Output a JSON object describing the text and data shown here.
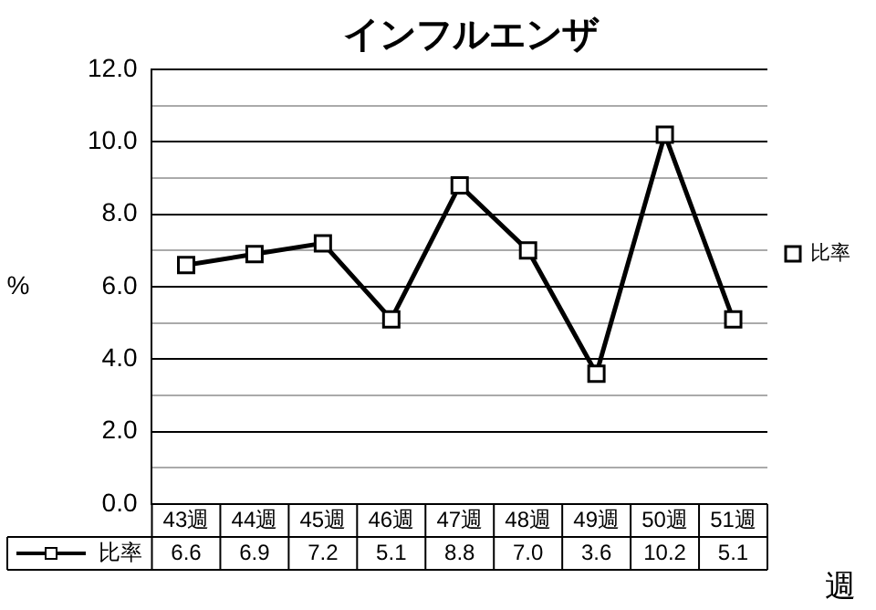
{
  "chart_data": {
    "type": "line",
    "title": "インフルエンザ",
    "ylabel": "%",
    "xlabel": "週",
    "categories": [
      "43週",
      "44週",
      "45週",
      "46週",
      "47週",
      "48週",
      "49週",
      "50週",
      "51週"
    ],
    "series": [
      {
        "name": "比率",
        "color": "#000000",
        "values": [
          6.6,
          6.9,
          7.2,
          5.1,
          8.8,
          7.0,
          3.6,
          10.2,
          5.1
        ],
        "value_labels": [
          "6.6",
          "6.9",
          "7.2",
          "5.1",
          "8.8",
          "7.0",
          "3.6",
          "10.2",
          "5.1"
        ]
      }
    ],
    "ylim": [
      0,
      12
    ],
    "yticks": [
      {
        "value": 0,
        "label": "0.0"
      },
      {
        "value": 1,
        "label": null
      },
      {
        "value": 2,
        "label": "2.0"
      },
      {
        "value": 3,
        "label": null
      },
      {
        "value": 4,
        "label": "4.0"
      },
      {
        "value": 5,
        "label": null
      },
      {
        "value": 6,
        "label": "6.0"
      },
      {
        "value": 7,
        "label": null
      },
      {
        "value": 8,
        "label": "8.0"
      },
      {
        "value": 9,
        "label": null
      },
      {
        "value": 10,
        "label": "10.0"
      },
      {
        "value": 11,
        "label": null
      },
      {
        "value": 12,
        "label": "12.0"
      }
    ],
    "grid": "y",
    "legend": "right",
    "marker": "square",
    "line_style": "solid"
  }
}
